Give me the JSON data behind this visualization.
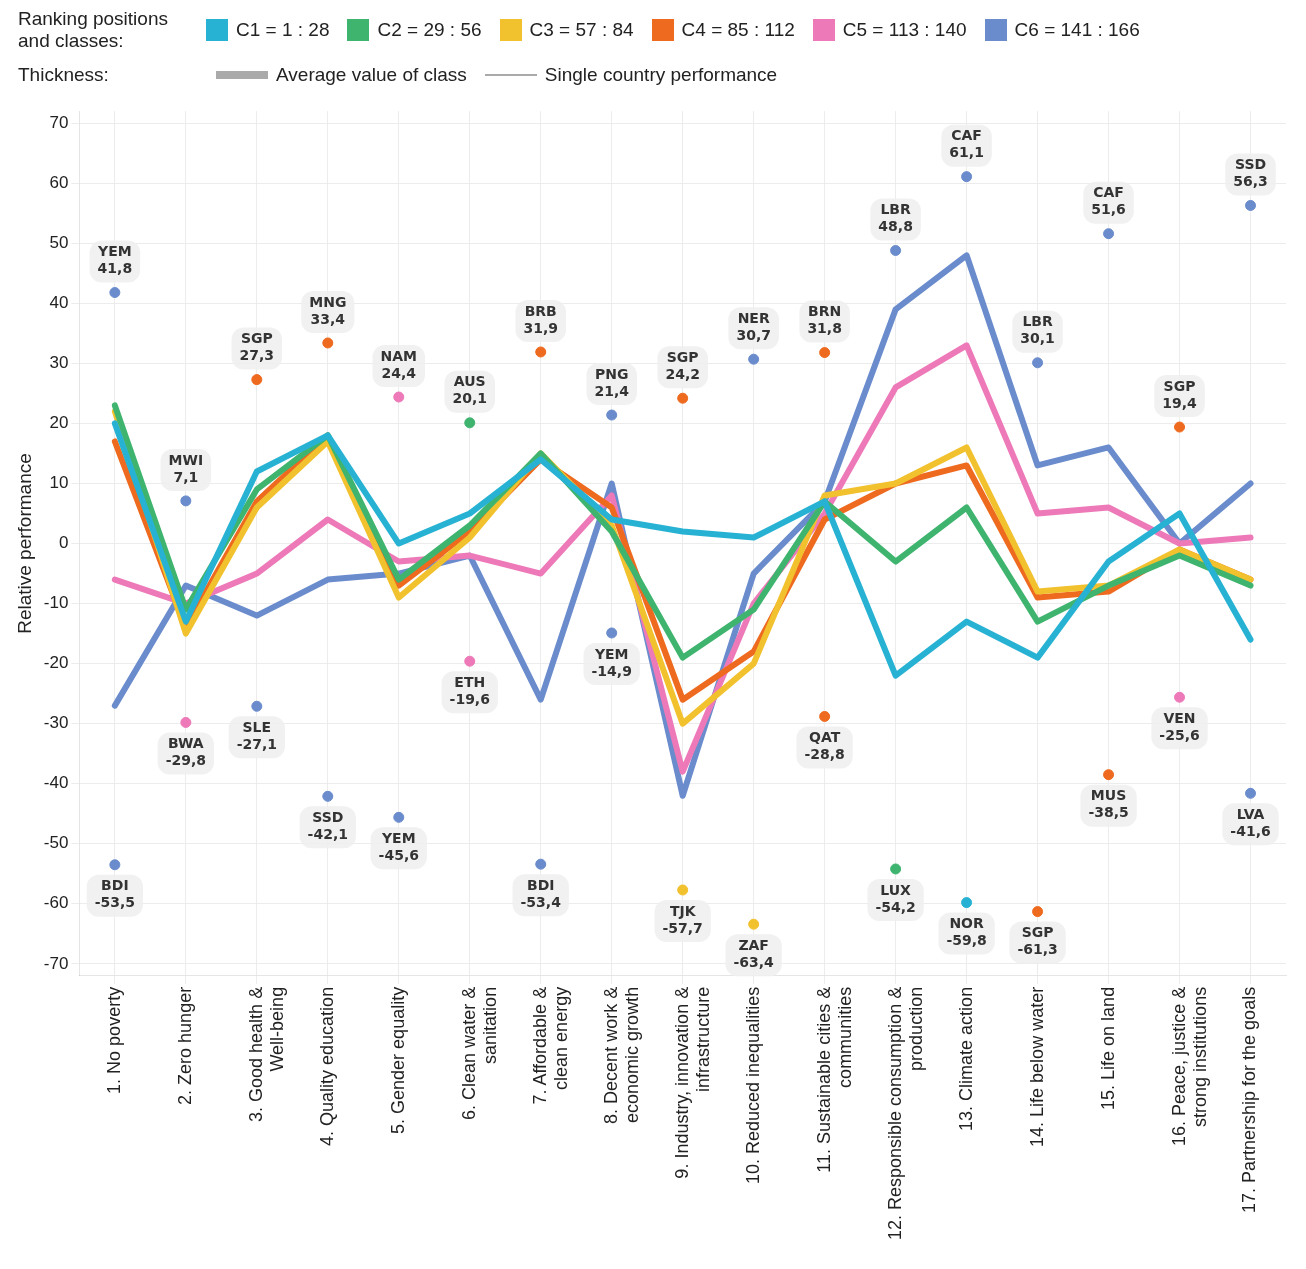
{
  "chart_data": {
    "type": "line",
    "legend_title": "Ranking positions and classes:",
    "legend": "top",
    "grid": true,
    "marker": "none",
    "line_style": "solid",
    "ylabel": "Relative performance",
    "ylim": [
      -72,
      72
    ],
    "yticks": [
      -70,
      -60,
      -50,
      -40,
      -30,
      -20,
      -10,
      0,
      10,
      20,
      30,
      40,
      50,
      60,
      70
    ],
    "annotations": [
      "Thickness:",
      "Average value of class",
      "Single country performance"
    ],
    "categories": [
      "1. No poverty",
      "2. Zero hunger",
      "3. Good health &\nWell-being",
      "4. Quality education",
      "5. Gender equality",
      "6. Clean water &\nsanitation",
      "7. Affordable &\nclean energy",
      "8. Decent work &\neconomic growth",
      "9. Industry, innovation &\ninfrastructure",
      "10. Reduced inequalities",
      "11. Sustainable cities &\ncommunities",
      "12. Responsible consumption &\nproduction",
      "13. Climate action",
      "14. Life below water",
      "15. Life on land",
      "16. Peace, justice &\nstrong institutions",
      "17. Partnership for the goals"
    ],
    "series": [
      {
        "name": "C1 = 1 : 28",
        "color": "#27b2d3",
        "values": [
          20,
          -13,
          12,
          18,
          0,
          5,
          14,
          4,
          2,
          1,
          7,
          -22,
          -13,
          -19,
          -3,
          5,
          -16
        ]
      },
      {
        "name": "C2 = 29 : 56",
        "color": "#3fb46f",
        "values": [
          23,
          -11,
          9,
          18,
          -6,
          3,
          15,
          2,
          -19,
          -11,
          7,
          -3,
          6,
          -13,
          -7,
          -2,
          -7
        ]
      },
      {
        "name": "C3 = 57 : 84",
        "color": "#f2c12e",
        "values": [
          22,
          -15,
          6,
          17,
          -9,
          1,
          15,
          3,
          -30,
          -20,
          8,
          10,
          16,
          -8,
          -7,
          -1,
          -6
        ]
      },
      {
        "name": "C4 = 85 : 112",
        "color": "#ee6a1f",
        "values": [
          17,
          -14,
          7,
          18,
          -7,
          2,
          14,
          6,
          -26,
          -18,
          4,
          10,
          13,
          -9,
          -8,
          -1,
          -6
        ]
      },
      {
        "name": "C5 = 113 : 140",
        "color": "#ed79b8",
        "values": [
          -6,
          -10,
          -5,
          4,
          -3,
          -2,
          -5,
          8,
          -38,
          -10,
          5,
          26,
          33,
          5,
          6,
          0,
          1
        ]
      },
      {
        "name": "C6 = 141 : 166",
        "color": "#6a8ccd",
        "values": [
          -27,
          -7,
          -12,
          -6,
          -5,
          -2,
          -26,
          10,
          -42,
          -5,
          7,
          39,
          48,
          13,
          16,
          0,
          10
        ]
      },
      {
        "type": "scatter",
        "marker": "circle",
        "x": [
          "1. No poverty",
          "2. Zero hunger",
          "3. Good health &\nWell-being",
          "4. Quality education",
          "5. Gender equality",
          "6. Clean water &\nsanitation",
          "7. Affordable &\nclean energy",
          "8. Decent work &\neconomic growth",
          "9. Industry, innovation &\ninfrastructure",
          "10. Reduced inequalities",
          "11. Sustainable cities &\ncommunities",
          "12. Responsible consumption &\nproduction",
          "13. Climate action",
          "14. Life below water",
          "15. Life on land",
          "16. Peace, justice &\nstrong institutions",
          "17. Partnership for the goals"
        ],
        "values": [
          41.8,
          7.1,
          27.3,
          33.4,
          24.4,
          20.1,
          31.9,
          21.4,
          24.2,
          30.7,
          31.8,
          48.8,
          61.1,
          30.1,
          51.6,
          19.4,
          56.3
        ],
        "colors": [
          "#6a8ccd",
          "#6a8ccd",
          "#ee6a1f",
          "#ee6a1f",
          "#ed79b8",
          "#3fb46f",
          "#ee6a1f",
          "#6a8ccd",
          "#ee6a1f",
          "#6a8ccd",
          "#ee6a1f",
          "#6a8ccd",
          "#6a8ccd",
          "#6a8ccd",
          "#6a8ccd",
          "#ee6a1f",
          "#6a8ccd"
        ],
        "value_labels": [
          "YEM\n41,8",
          "MWI\n7,1",
          "SGP\n27,3",
          "MNG\n33,4",
          "NAM\n24,4",
          "AUS\n20,1",
          "BRB\n31,9",
          "PNG\n21,4",
          "SGP\n24,2",
          "NER\n30,7",
          "BRN\n31,8",
          "LBR\n48,8",
          "CAF\n61,1",
          "LBR\n30,1",
          "CAF\n51,6",
          "SGP\n19,4",
          "SSD\n56,3"
        ]
      },
      {
        "type": "scatter",
        "marker": "circle",
        "x": [
          "1. No poverty",
          "2. Zero hunger",
          "3. Good health &\nWell-being",
          "4. Quality education",
          "5. Gender equality",
          "6. Clean water &\nsanitation",
          "7. Affordable &\nclean energy",
          "8. Decent work &\neconomic growth",
          "9. Industry, innovation &\ninfrastructure",
          "10. Reduced inequalities",
          "11. Sustainable cities &\ncommunities",
          "12. Responsible consumption &\nproduction",
          "13. Climate action",
          "14. Life below water",
          "15. Life on land",
          "16. Peace, justice &\nstrong institutions",
          "17. Partnership for the goals"
        ],
        "values": [
          -53.5,
          -29.8,
          -27.1,
          -42.1,
          -45.6,
          -19.6,
          -53.4,
          -14.9,
          -57.7,
          -63.4,
          -28.8,
          -54.2,
          -59.8,
          -61.3,
          -38.5,
          -25.6,
          -41.6
        ],
        "colors": [
          "#6a8ccd",
          "#ed79b8",
          "#6a8ccd",
          "#6a8ccd",
          "#6a8ccd",
          "#ed79b8",
          "#6a8ccd",
          "#6a8ccd",
          "#f2c12e",
          "#f2c12e",
          "#ee6a1f",
          "#3fb46f",
          "#27b2d3",
          "#ee6a1f",
          "#ee6a1f",
          "#ed79b8",
          "#6a8ccd"
        ],
        "value_labels": [
          "BDI\n-53,5",
          "BWA\n-29,8",
          "SLE\n-27,1",
          "SSD\n-42,1",
          "YEM\n-45,6",
          "ETH\n-19,6",
          "BDI\n-53,4",
          "YEM\n-14,9",
          "TJK\n-57,7",
          "ZAF\n-63,4",
          "QAT\n-28,8",
          "LUX\n-54,2",
          "NOR\n-59,8",
          "SGP\n-61,3",
          "MUS\n-38,5",
          "VEN\n-25,6",
          "LVA\n-41,6"
        ]
      }
    ]
  }
}
